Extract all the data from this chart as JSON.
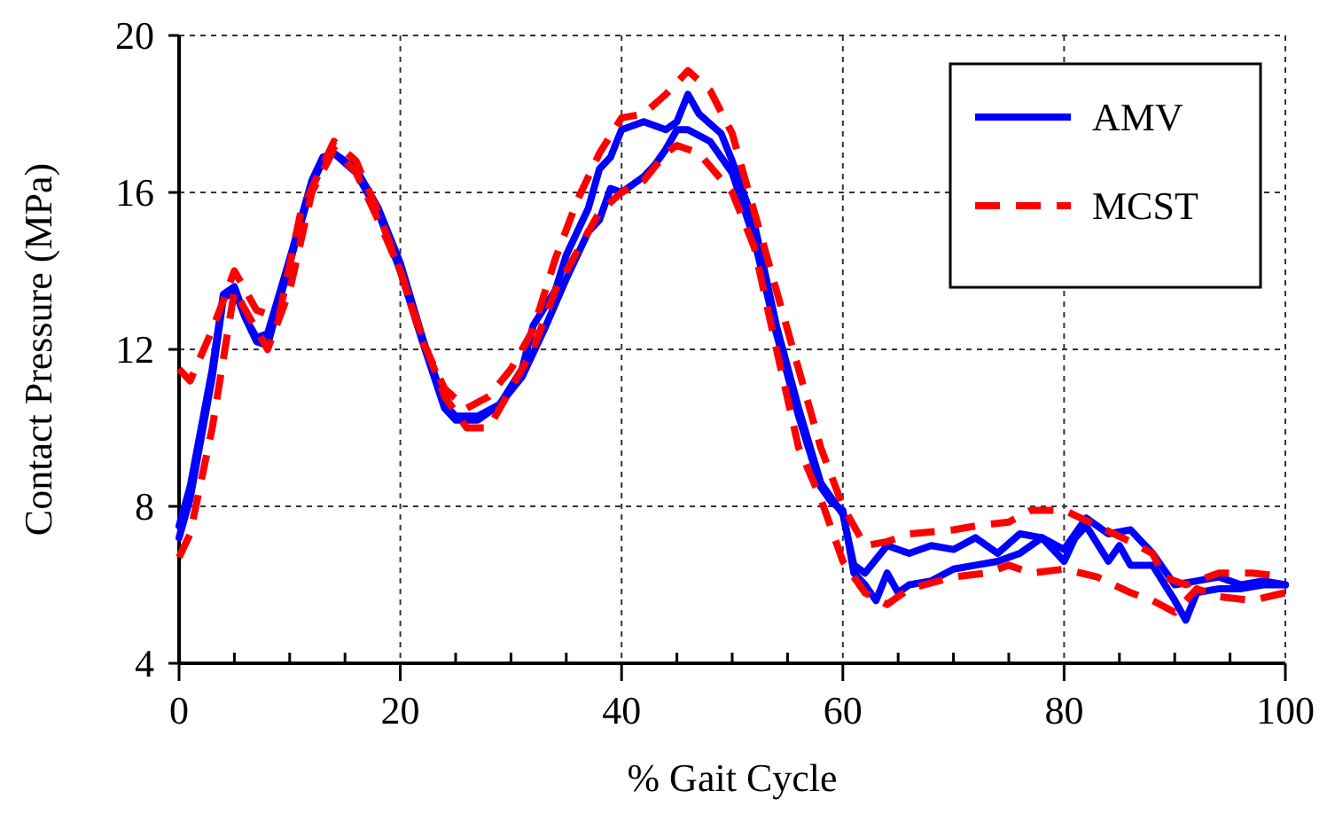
{
  "chart_data": {
    "type": "line",
    "xlabel": "% Gait Cycle",
    "ylabel": "Contact Pressure (MPa)",
    "xlim": [
      0,
      100
    ],
    "ylim": [
      4,
      20
    ],
    "xticks": [
      0,
      {
        "value": 5,
        "label": null
      },
      {
        "value": 10,
        "label": null
      },
      {
        "value": 15,
        "label": null
      },
      20,
      {
        "value": 25,
        "label": null
      },
      {
        "value": 30,
        "label": null
      },
      {
        "value": 35,
        "label": null
      },
      40,
      {
        "value": 45,
        "label": null
      },
      {
        "value": 50,
        "label": null
      },
      {
        "value": 55,
        "label": null
      },
      60,
      {
        "value": 65,
        "label": null
      },
      {
        "value": 70,
        "label": null
      },
      {
        "value": 75,
        "label": null
      },
      80,
      {
        "value": 85,
        "label": null
      },
      {
        "value": 90,
        "label": null
      },
      {
        "value": 95,
        "label": null
      },
      100
    ],
    "yticks": [
      4,
      8,
      12,
      16,
      20
    ],
    "grid": true,
    "legend": "top right",
    "marker": "none",
    "series": [
      {
        "name": "AMV",
        "color": "#0000ff",
        "line_style": "solid",
        "x": [
          0,
          1,
          3,
          4,
          5,
          6,
          7,
          8,
          10,
          12,
          13,
          14,
          16,
          18,
          20,
          22,
          24,
          25,
          27,
          29,
          31,
          32,
          34,
          35,
          37,
          38,
          39,
          40,
          41,
          42,
          44,
          45,
          46,
          47,
          49,
          50,
          52,
          54,
          56,
          58,
          60,
          61,
          62,
          64,
          66,
          68,
          70,
          72,
          74,
          76,
          78,
          80,
          82,
          84,
          86,
          88,
          90,
          92,
          94,
          96,
          98,
          100
        ],
        "values": [
          7.5,
          8.5,
          11.5,
          13.4,
          13.6,
          12.8,
          12.3,
          12.4,
          14.3,
          16.3,
          16.9,
          17,
          16.6,
          15.6,
          14.2,
          12.3,
          10.6,
          10.3,
          10.3,
          10.6,
          11.5,
          12.6,
          13.5,
          14.4,
          15.6,
          16.6,
          16.9,
          17.6,
          17.7,
          17.8,
          17.6,
          17.8,
          18.5,
          18,
          17.5,
          16.8,
          15.2,
          12.6,
          10.5,
          8.6,
          7.8,
          6.5,
          6.3,
          7,
          6.8,
          7,
          6.9,
          7.2,
          6.8,
          7.3,
          7.2,
          6.9,
          7.7,
          7.3,
          7.4,
          6.8,
          6,
          6.1,
          6.2,
          6,
          6.1,
          6
        ]
      },
      {
        "color": "#0000ff",
        "line_style": "solid",
        "x": [
          0,
          1,
          3,
          4,
          5,
          6,
          7,
          8,
          10,
          12,
          13,
          14,
          16,
          18,
          20,
          22,
          24,
          25,
          27,
          29,
          31,
          33,
          35,
          37,
          38,
          39,
          40,
          42,
          43,
          44,
          45,
          46,
          48,
          50,
          52,
          54,
          56,
          58,
          59,
          60,
          61,
          62,
          63,
          64,
          65,
          66,
          68,
          70,
          72,
          74,
          76,
          78,
          80,
          81,
          82,
          84,
          85,
          86,
          88,
          90,
          91,
          92,
          94,
          96,
          98,
          100
        ],
        "values": [
          7.2,
          8.2,
          11.3,
          13.3,
          13.5,
          12.8,
          12.2,
          12.1,
          14.2,
          16.2,
          16.8,
          17,
          16.5,
          15.5,
          14,
          12.2,
          10.5,
          10.2,
          10.2,
          10.6,
          11.3,
          12.5,
          13.8,
          15,
          15.3,
          16.1,
          16,
          16.4,
          16.7,
          17.1,
          17.6,
          17.6,
          17.3,
          16.5,
          14.8,
          12.4,
          10.3,
          8.5,
          8.1,
          7.9,
          6.3,
          6,
          5.6,
          6.3,
          5.8,
          6,
          6.1,
          6.4,
          6.5,
          6.6,
          6.8,
          7.2,
          6.6,
          7.2,
          7.5,
          6.6,
          7,
          6.5,
          6.5,
          5.6,
          5.1,
          5.8,
          5.9,
          5.9,
          6,
          6
        ]
      },
      {
        "name": "MCST",
        "color": "#ff0000",
        "line_style": "dashed",
        "x": [
          0,
          1,
          3,
          5,
          7,
          9,
          11,
          14,
          16,
          18,
          20,
          22,
          24,
          26,
          28,
          30,
          32,
          34,
          36,
          38,
          40,
          42,
          44,
          46,
          48,
          50,
          52,
          54,
          56,
          58,
          60,
          62,
          64,
          66,
          70,
          72,
          75,
          77,
          80,
          83,
          86,
          88,
          89,
          91,
          94,
          97,
          100
        ],
        "values": [
          11.5,
          11.2,
          12.5,
          14,
          13,
          12.8,
          15.5,
          17.3,
          16.8,
          15.5,
          14,
          12.2,
          11,
          10.5,
          10.8,
          11.5,
          12.5,
          14.3,
          15.8,
          17,
          17.9,
          18,
          18.5,
          19.1,
          18.6,
          17.5,
          15.5,
          13.5,
          11.5,
          9.5,
          8,
          7,
          7.1,
          7.3,
          7.4,
          7.5,
          7.6,
          7.9,
          7.9,
          7.5,
          7.1,
          6.8,
          6.2,
          6,
          6.3,
          6.3,
          6.2
        ]
      },
      {
        "color": "#ff0000",
        "line_style": "dashed",
        "x": [
          0,
          1,
          3,
          5,
          7,
          8,
          10,
          12,
          14,
          16,
          18,
          20,
          22,
          24,
          26,
          28,
          30,
          32,
          34,
          36,
          38,
          40,
          42,
          44,
          45,
          47,
          50,
          52,
          54,
          56,
          58,
          60,
          62,
          64,
          66,
          70,
          73,
          75,
          77,
          80,
          83,
          86,
          88,
          90,
          92,
          94,
          97,
          100
        ],
        "values": [
          6.7,
          7.3,
          10,
          13.5,
          12.5,
          12,
          13.5,
          16,
          17.1,
          16.5,
          15.3,
          14,
          12.3,
          10.8,
          10,
          10,
          11,
          12,
          13.5,
          14.5,
          15.5,
          16,
          16.3,
          17,
          17.2,
          17,
          16,
          14.6,
          12,
          9.5,
          8.2,
          6.6,
          5.8,
          5.5,
          5.9,
          6.2,
          6.3,
          6.5,
          6.3,
          6.4,
          6.2,
          5.8,
          5.6,
          5.3,
          5.9,
          5.7,
          5.6,
          5.8
        ]
      }
    ]
  }
}
